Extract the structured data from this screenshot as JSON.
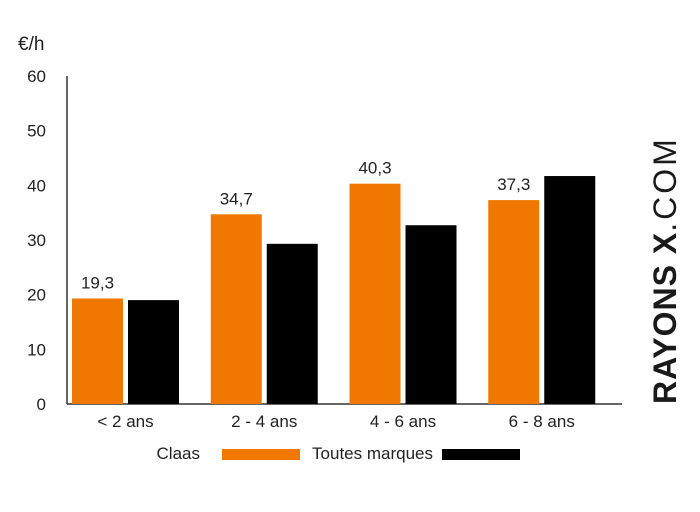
{
  "chart_data": {
    "type": "bar",
    "ylabel": "€/h",
    "ylim": [
      0,
      60
    ],
    "yticks": [
      0,
      10,
      20,
      30,
      40,
      50,
      60
    ],
    "categories": [
      "< 2 ans",
      "2 - 4 ans",
      "4 - 6 ans",
      "6 - 8 ans"
    ],
    "series": [
      {
        "name": "Claas",
        "values": [
          19.3,
          34.7,
          40.3,
          37.3
        ],
        "color": "#f07800",
        "labels": [
          "19,3",
          "34,7",
          "40,3",
          "37,3"
        ]
      },
      {
        "name": "Toutes marques",
        "values": [
          19.0,
          29.3,
          32.7,
          41.7
        ],
        "color": "#000000"
      }
    ],
    "legend_position": "bottom",
    "grid": false
  },
  "watermark": {
    "strong": "RAYONS X",
    "light": ".COM"
  }
}
